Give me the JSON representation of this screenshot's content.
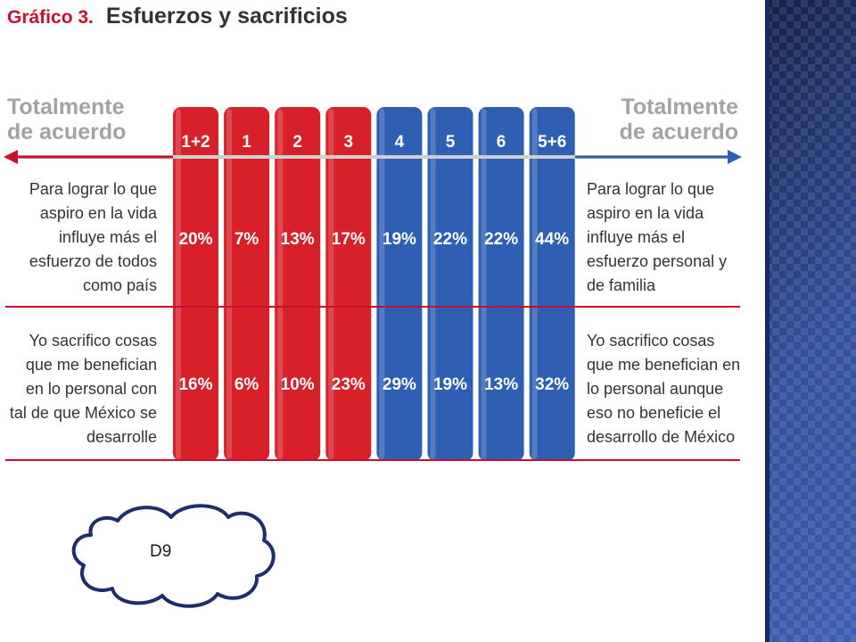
{
  "chart_data": {
    "type": "table",
    "title_prefix": "Gráfico 3.",
    "title": "Esfuerzos y sacrificios",
    "left_scale_label": [
      "Totalmente",
      "de acuerdo"
    ],
    "right_scale_label": [
      "Totalmente",
      "de acuerdo"
    ],
    "columns": [
      "1+2",
      "1",
      "2",
      "3",
      "4",
      "5",
      "6",
      "5+6"
    ],
    "column_colors": [
      "#d8202a",
      "#d8202a",
      "#d8202a",
      "#d8202a",
      "#2f5fb3",
      "#2f5fb3",
      "#2f5fb3",
      "#2f5fb3"
    ],
    "rows": [
      {
        "left_statement": [
          "Para lograr lo que",
          "aspiro en la vida",
          "influye más el",
          "esfuerzo de todos",
          "como país"
        ],
        "right_statement": [
          "Para lograr lo que",
          "aspiro en la vida",
          "influye más el",
          "esfuerzo personal y",
          "de familia"
        ],
        "value_labels": [
          "20%",
          "7%",
          "13%",
          "17%",
          "19%",
          "22%",
          "22%",
          "44%"
        ]
      },
      {
        "left_statement": [
          "Yo sacrifico cosas",
          "que me benefician",
          "en lo personal con",
          "tal de que México se",
          "desarrolle"
        ],
        "right_statement": [
          "Yo sacrifico cosas",
          "que me benefician en",
          "lo personal aunque",
          "eso no beneficie el",
          "desarrollo de México"
        ],
        "value_labels": [
          "16%",
          "6%",
          "10%",
          "23%",
          "29%",
          "19%",
          "13%",
          "32%"
        ]
      }
    ]
  },
  "cloud": {
    "label": "D9"
  },
  "colors": {
    "red": "#d8202a",
    "blue": "#2f5fb3",
    "gray_text": "#a3a3a3",
    "title_red": "#c8102e"
  }
}
